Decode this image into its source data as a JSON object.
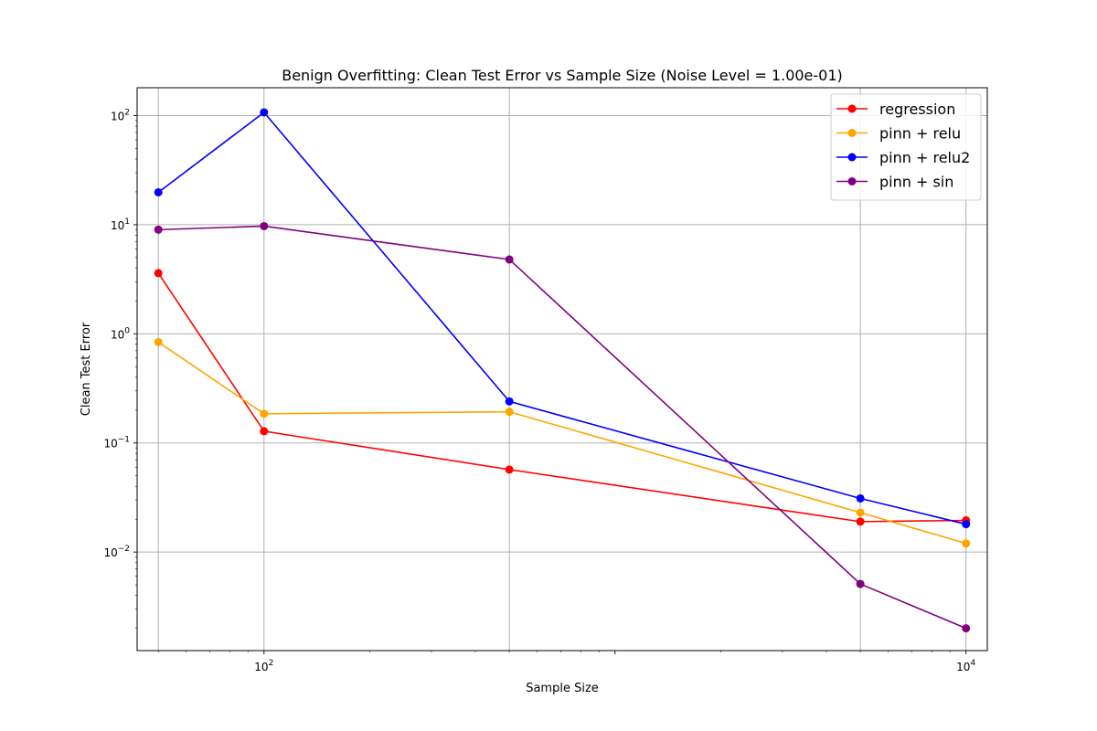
{
  "chart_data": {
    "type": "line",
    "title": "Benign Overfitting: Clean Test Error vs Sample Size (Noise Level = 1.00e-01)",
    "xlabel": "Sample Size",
    "ylabel": "Clean Test Error",
    "xscale": "log",
    "yscale": "log",
    "xlim": [
      43.5,
      11500
    ],
    "ylim": [
      0.00125,
      180
    ],
    "grid": true,
    "legend_position": "top-right",
    "x": [
      50,
      100,
      500,
      5000,
      10000
    ],
    "x_ticks": [
      {
        "base": "10",
        "exp": "2",
        "value": 100
      },
      {
        "base": "10",
        "exp": "4",
        "value": 10000
      }
    ],
    "y_ticks": [
      {
        "base": "10",
        "exp": "2",
        "value": 100
      },
      {
        "base": "10",
        "exp": "1",
        "value": 10
      },
      {
        "base": "10",
        "exp": "0",
        "value": 1
      },
      {
        "base": "10",
        "exp": "−1",
        "value": 0.1
      },
      {
        "base": "10",
        "exp": "−2",
        "value": 0.01
      }
    ],
    "series": [
      {
        "name": "regression",
        "color": "#ff0000",
        "values": [
          3.6,
          0.128,
          0.057,
          0.019,
          0.0195
        ]
      },
      {
        "name": "pinn + relu",
        "color": "#ffa500",
        "values": [
          0.84,
          0.185,
          0.193,
          0.023,
          0.012
        ]
      },
      {
        "name": "pinn + relu2",
        "color": "#0000ff",
        "values": [
          19.8,
          107,
          0.24,
          0.031,
          0.018
        ]
      },
      {
        "name": "pinn + sin",
        "color": "#800080",
        "values": [
          9.0,
          9.7,
          4.8,
          0.0051,
          0.002
        ]
      }
    ]
  }
}
